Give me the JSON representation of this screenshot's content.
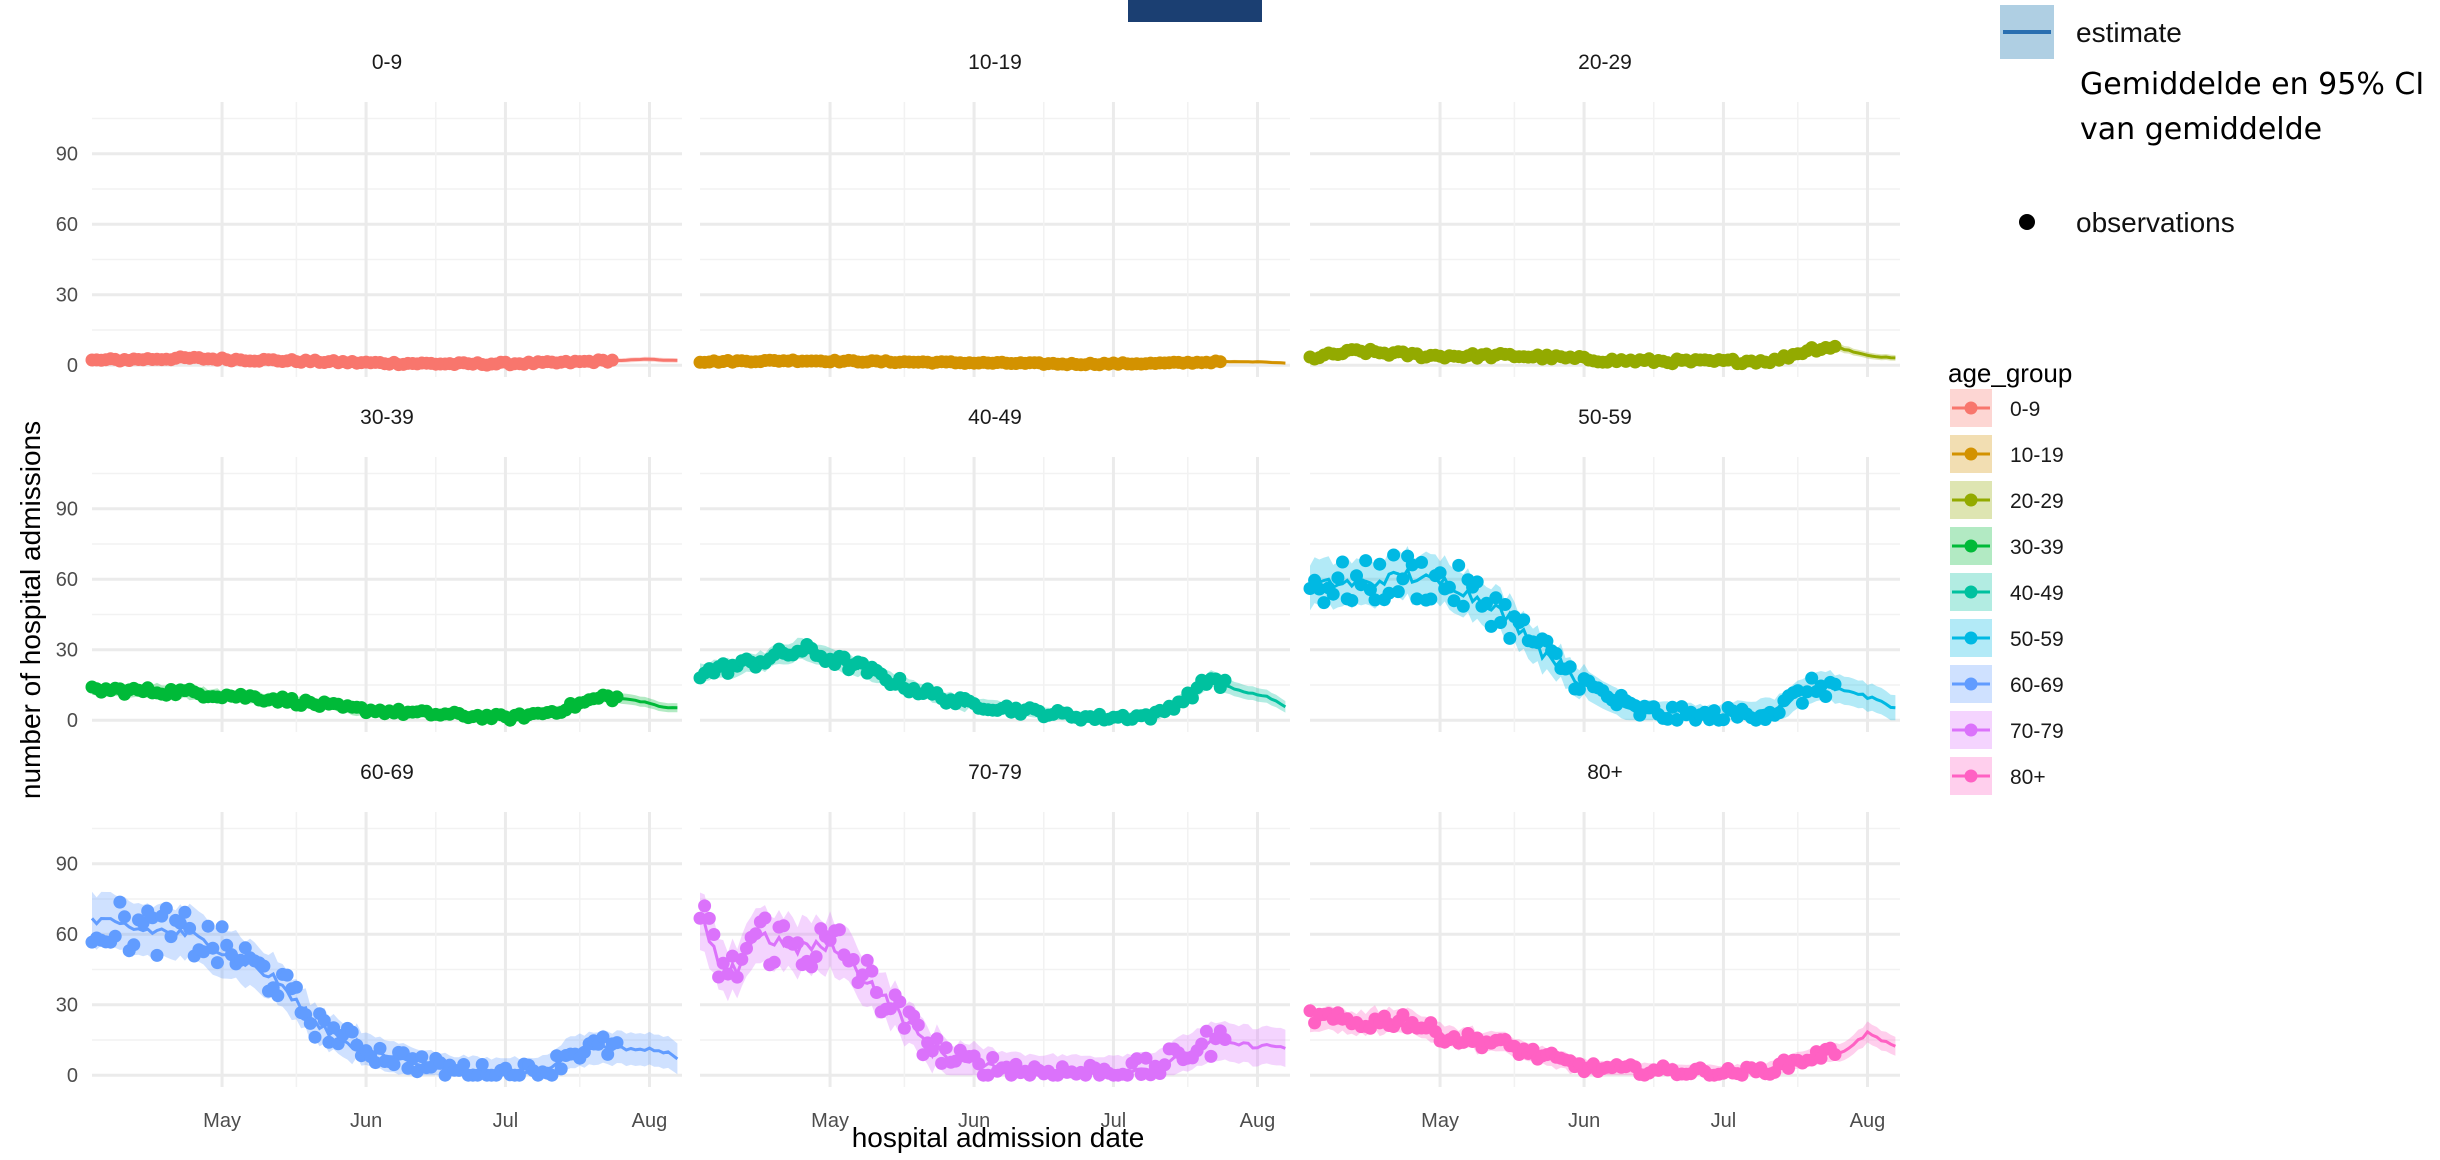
{
  "chart_data": {
    "type": "line",
    "layout": "facet-grid-3x3",
    "xlabel": "hospital admission date",
    "ylabel": "number of hospital admissions",
    "x_ticks": [
      "May",
      "Jun",
      "Jul",
      "Aug"
    ],
    "x_tick_dates": [
      "2020-05-01",
      "2020-06-01",
      "2020-07-01",
      "2020-08-01"
    ],
    "x_range": [
      "2020-04-03",
      "2020-08-08"
    ],
    "y_ticks": [
      0,
      30,
      60,
      90
    ],
    "ylim": [
      -5,
      112
    ],
    "grid": true,
    "legend": {
      "title": "age_group",
      "placement": "right",
      "entries": [
        "0-9",
        "10-19",
        "20-29",
        "30-39",
        "40-49",
        "50-59",
        "60-69",
        "70-79",
        "80+"
      ]
    },
    "top_legend": {
      "estimate_label": "estimate",
      "ci_note_line1": "Gemiddelde en 95% CI",
      "ci_note_line2": "van gemiddelde",
      "observations_label": "observations"
    },
    "colors": {
      "0-9": "#F8766D",
      "10-19": "#D39200",
      "20-29": "#93AA00",
      "30-39": "#00BA38",
      "40-49": "#00C19F",
      "50-59": "#00B9E3",
      "60-69": "#619CFF",
      "70-79": "#DB72FB",
      "80+": "#FF61C3",
      "estimate_line": "#2A6FB0",
      "estimate_band": "#AFCFE3",
      "top_bar": "#1B3F72"
    },
    "panels": [
      {
        "name": "0-9",
        "anchors": [
          [
            0,
            2
          ],
          [
            20,
            3
          ],
          [
            40,
            2
          ],
          [
            60,
            1
          ],
          [
            80,
            0.5
          ],
          [
            100,
            1
          ],
          [
            112,
            2
          ],
          [
            120,
            2.5
          ],
          [
            126,
            2
          ]
        ],
        "noise": 1.5,
        "band": 0.8,
        "obs_end": 112
      },
      {
        "name": "10-19",
        "anchors": [
          [
            0,
            1.5
          ],
          [
            20,
            2
          ],
          [
            40,
            1.5
          ],
          [
            60,
            1
          ],
          [
            80,
            0.5
          ],
          [
            100,
            0.8
          ],
          [
            112,
            1.5
          ],
          [
            120,
            1.5
          ],
          [
            126,
            1
          ]
        ],
        "noise": 1,
        "band": 0.6,
        "obs_end": 112
      },
      {
        "name": "20-29",
        "anchors": [
          [
            0,
            3
          ],
          [
            10,
            6
          ],
          [
            25,
            4
          ],
          [
            45,
            4
          ],
          [
            65,
            2
          ],
          [
            85,
            1.5
          ],
          [
            100,
            2
          ],
          [
            108,
            7
          ],
          [
            113,
            8
          ],
          [
            120,
            4
          ],
          [
            126,
            3
          ]
        ],
        "noise": 2.5,
        "band": 1,
        "obs_end": 113
      },
      {
        "name": "30-39",
        "anchors": [
          [
            0,
            13
          ],
          [
            20,
            12
          ],
          [
            40,
            9
          ],
          [
            55,
            5
          ],
          [
            70,
            3
          ],
          [
            90,
            1
          ],
          [
            100,
            4
          ],
          [
            110,
            10
          ],
          [
            116,
            9
          ],
          [
            122,
            6
          ],
          [
            126,
            5
          ]
        ],
        "noise": 3,
        "band": 1.5,
        "obs_end": 113
      },
      {
        "name": "40-49",
        "anchors": [
          [
            0,
            20
          ],
          [
            10,
            24
          ],
          [
            22,
            30
          ],
          [
            35,
            22
          ],
          [
            45,
            14
          ],
          [
            55,
            8
          ],
          [
            70,
            4
          ],
          [
            85,
            1
          ],
          [
            98,
            2
          ],
          [
            105,
            10
          ],
          [
            110,
            18
          ],
          [
            115,
            13
          ],
          [
            122,
            10
          ],
          [
            126,
            6
          ]
        ],
        "noise": 4,
        "band": 2,
        "obs_end": 113
      },
      {
        "name": "50-59",
        "anchors": [
          [
            0,
            58
          ],
          [
            12,
            58
          ],
          [
            20,
            62
          ],
          [
            30,
            58
          ],
          [
            40,
            48
          ],
          [
            50,
            30
          ],
          [
            60,
            14
          ],
          [
            70,
            4
          ],
          [
            85,
            1
          ],
          [
            100,
            4
          ],
          [
            105,
            10
          ],
          [
            110,
            15
          ],
          [
            115,
            13
          ],
          [
            122,
            9
          ],
          [
            126,
            5
          ]
        ],
        "noise": 9,
        "band": 5,
        "obs_end": 113
      },
      {
        "name": "60-69",
        "anchors": [
          [
            0,
            66
          ],
          [
            10,
            62
          ],
          [
            20,
            60
          ],
          [
            30,
            52
          ],
          [
            40,
            40
          ],
          [
            48,
            22
          ],
          [
            60,
            10
          ],
          [
            75,
            3
          ],
          [
            85,
            1
          ],
          [
            98,
            2
          ],
          [
            103,
            10
          ],
          [
            110,
            12
          ],
          [
            118,
            11
          ],
          [
            124,
            10
          ],
          [
            126,
            6
          ]
        ],
        "noise": 9,
        "band": 6,
        "obs_end": 113
      },
      {
        "name": "70-79",
        "anchors": [
          [
            0,
            65
          ],
          [
            6,
            40
          ],
          [
            12,
            60
          ],
          [
            20,
            55
          ],
          [
            30,
            54
          ],
          [
            40,
            32
          ],
          [
            48,
            15
          ],
          [
            55,
            6
          ],
          [
            70,
            2
          ],
          [
            85,
            1
          ],
          [
            98,
            3
          ],
          [
            105,
            10
          ],
          [
            110,
            14
          ],
          [
            118,
            13
          ],
          [
            126,
            12
          ]
        ],
        "noise": 11,
        "band": 7,
        "obs_end": 113
      },
      {
        "name": "80+",
        "anchors": [
          [
            0,
            25
          ],
          [
            10,
            22
          ],
          [
            20,
            24
          ],
          [
            30,
            16
          ],
          [
            40,
            14
          ],
          [
            50,
            8
          ],
          [
            60,
            3
          ],
          [
            75,
            2
          ],
          [
            90,
            1
          ],
          [
            98,
            2
          ],
          [
            105,
            6
          ],
          [
            110,
            9
          ],
          [
            115,
            10
          ],
          [
            120,
            18
          ],
          [
            126,
            12
          ]
        ],
        "noise": 5,
        "band": 3,
        "obs_end": 113
      }
    ]
  }
}
